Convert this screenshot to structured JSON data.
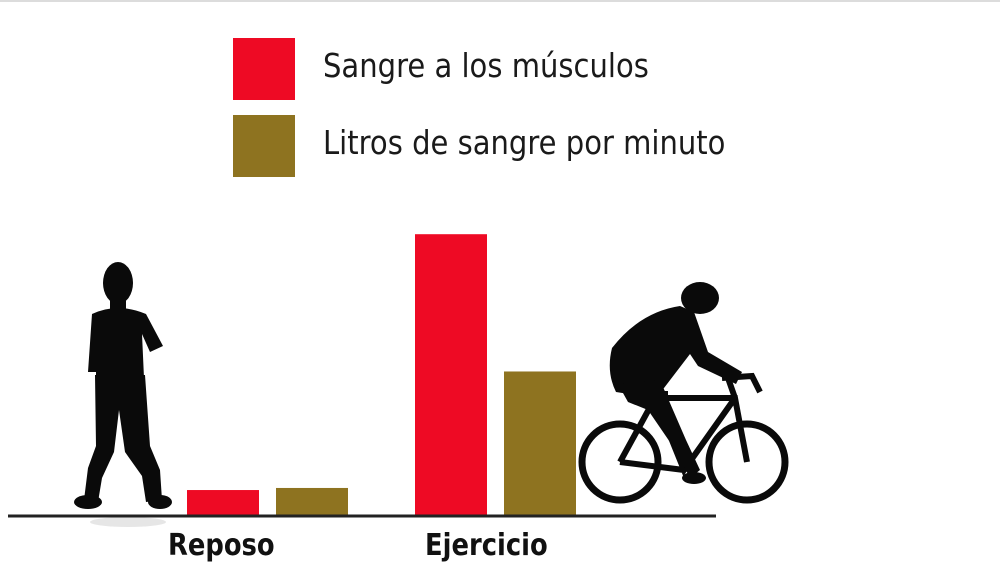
{
  "colors": {
    "muscles": "#ee0a24",
    "liters": "#8e7320",
    "silhouette": "#0a0a0a",
    "axis": "#222222"
  },
  "icons": [
    "standing-person-icon",
    "cyclist-icon"
  ],
  "legend": [
    {
      "label": "Sangre a los músculos",
      "color": "#ee0a24"
    },
    {
      "label": "Litros de sangre por minuto",
      "color": "#8e7320"
    }
  ],
  "chart_data": {
    "type": "bar",
    "categories": [
      "Reposo",
      "Ejercicio"
    ],
    "series": [
      {
        "name": "Sangre a los músculos",
        "values": [
          1.2,
          13.5
        ]
      },
      {
        "name": "Litros de sangre por minuto",
        "values": [
          1.3,
          6.9
        ]
      }
    ],
    "ylim": [
      0,
      15
    ],
    "grid": false,
    "legend_position": "top-center",
    "xlabel": "",
    "ylabel": ""
  }
}
